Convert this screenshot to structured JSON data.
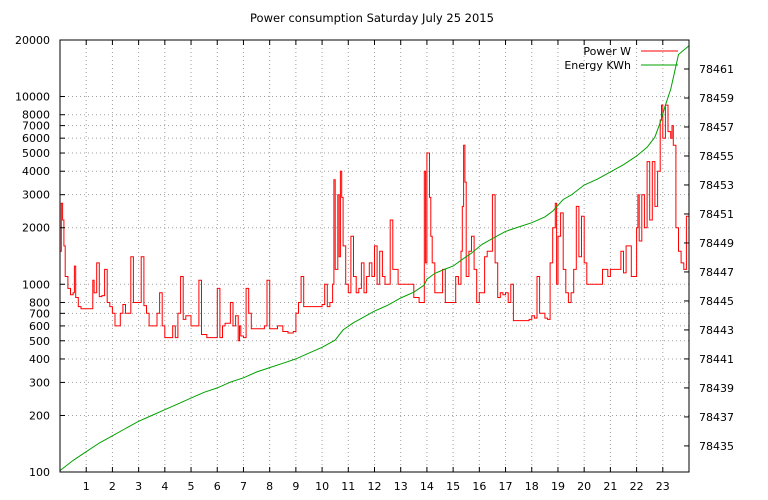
{
  "chart_data": {
    "type": "line",
    "title": "Power consumption Saturday July 25 2015",
    "xlabel": "",
    "ylabel": "",
    "y2label": "",
    "x_ticks": [
      "1",
      "2",
      "3",
      "4",
      "5",
      "6",
      "7",
      "8",
      "9",
      "10",
      "11",
      "12",
      "13",
      "14",
      "15",
      "16",
      "17",
      "18",
      "19",
      "20",
      "21",
      "22",
      "23"
    ],
    "xlim": [
      0,
      24
    ],
    "y_scale": "log",
    "ylim": [
      100,
      20000
    ],
    "y_ticks": [
      "100",
      "200",
      "300",
      "400",
      "500",
      "600",
      "700",
      "800",
      "1000",
      "2000",
      "3000",
      "4000",
      "5000",
      "6000",
      "7000",
      "8000",
      "10000",
      "20000"
    ],
    "y2lim": [
      78433.2,
      78463
    ],
    "y2_ticks": [
      "78435",
      "78437",
      "78439",
      "78441",
      "78443",
      "78445",
      "78447",
      "78449",
      "78451",
      "78453",
      "78455",
      "78457",
      "78459",
      "78461"
    ],
    "grid": true,
    "legend_position": "top-right",
    "colors": {
      "power": "#ff0000",
      "energy": "#00a000"
    },
    "series": [
      {
        "name": "Power W",
        "axis": "y1",
        "points": [
          [
            0.0,
            1500
          ],
          [
            0.05,
            2700
          ],
          [
            0.1,
            2200
          ],
          [
            0.15,
            1600
          ],
          [
            0.2,
            1100
          ],
          [
            0.3,
            950
          ],
          [
            0.4,
            880
          ],
          [
            0.5,
            900
          ],
          [
            0.55,
            1250
          ],
          [
            0.6,
            850
          ],
          [
            0.7,
            760
          ],
          [
            0.8,
            740
          ],
          [
            0.9,
            740
          ],
          [
            1.0,
            740
          ],
          [
            1.1,
            740
          ],
          [
            1.25,
            1050
          ],
          [
            1.3,
            900
          ],
          [
            1.4,
            1300
          ],
          [
            1.5,
            860
          ],
          [
            1.6,
            870
          ],
          [
            1.7,
            1200
          ],
          [
            1.8,
            800
          ],
          [
            1.9,
            760
          ],
          [
            2.0,
            700
          ],
          [
            2.1,
            600
          ],
          [
            2.2,
            600
          ],
          [
            2.3,
            700
          ],
          [
            2.4,
            780
          ],
          [
            2.5,
            700
          ],
          [
            2.6,
            700
          ],
          [
            2.7,
            1400
          ],
          [
            2.8,
            800
          ],
          [
            3.0,
            800
          ],
          [
            3.1,
            1400
          ],
          [
            3.2,
            770
          ],
          [
            3.3,
            700
          ],
          [
            3.4,
            600
          ],
          [
            3.6,
            600
          ],
          [
            3.7,
            700
          ],
          [
            3.8,
            900
          ],
          [
            3.9,
            600
          ],
          [
            4.0,
            520
          ],
          [
            4.2,
            520
          ],
          [
            4.3,
            600
          ],
          [
            4.4,
            520
          ],
          [
            4.5,
            700
          ],
          [
            4.6,
            1100
          ],
          [
            4.7,
            650
          ],
          [
            4.8,
            680
          ],
          [
            4.9,
            680
          ],
          [
            5.0,
            600
          ],
          [
            5.1,
            600
          ],
          [
            5.3,
            1050
          ],
          [
            5.4,
            540
          ],
          [
            5.6,
            520
          ],
          [
            5.9,
            520
          ],
          [
            6.0,
            950
          ],
          [
            6.1,
            520
          ],
          [
            6.2,
            600
          ],
          [
            6.3,
            620
          ],
          [
            6.5,
            800
          ],
          [
            6.6,
            600
          ],
          [
            6.7,
            680
          ],
          [
            6.8,
            500
          ],
          [
            6.85,
            600
          ],
          [
            6.9,
            530
          ],
          [
            7.0,
            520
          ],
          [
            7.1,
            950
          ],
          [
            7.2,
            700
          ],
          [
            7.3,
            580
          ],
          [
            7.6,
            580
          ],
          [
            7.8,
            600
          ],
          [
            7.9,
            1050
          ],
          [
            8.0,
            580
          ],
          [
            8.3,
            600
          ],
          [
            8.5,
            560
          ],
          [
            8.7,
            550
          ],
          [
            8.9,
            560
          ],
          [
            9.0,
            700
          ],
          [
            9.1,
            800
          ],
          [
            9.2,
            1100
          ],
          [
            9.3,
            760
          ],
          [
            9.6,
            760
          ],
          [
            9.8,
            760
          ],
          [
            10.0,
            780
          ],
          [
            10.1,
            1000
          ],
          [
            10.2,
            760
          ],
          [
            10.3,
            800
          ],
          [
            10.4,
            1000
          ],
          [
            10.45,
            3600
          ],
          [
            10.5,
            1200
          ],
          [
            10.6,
            3000
          ],
          [
            10.65,
            1400
          ],
          [
            10.7,
            4000
          ],
          [
            10.75,
            2900
          ],
          [
            10.8,
            1600
          ],
          [
            10.9,
            1000
          ],
          [
            11.0,
            900
          ],
          [
            11.1,
            1800
          ],
          [
            11.2,
            1100
          ],
          [
            11.3,
            900
          ],
          [
            11.4,
            950
          ],
          [
            11.5,
            1300
          ],
          [
            11.6,
            900
          ],
          [
            11.7,
            1100
          ],
          [
            11.8,
            1300
          ],
          [
            11.9,
            1100
          ],
          [
            12.0,
            1600
          ],
          [
            12.1,
            1000
          ],
          [
            12.2,
            1500
          ],
          [
            12.3,
            1100
          ],
          [
            12.4,
            1000
          ],
          [
            12.6,
            2200
          ],
          [
            12.7,
            1200
          ],
          [
            12.9,
            1000
          ],
          [
            13.0,
            1000
          ],
          [
            13.3,
            1000
          ],
          [
            13.5,
            850
          ],
          [
            13.7,
            800
          ],
          [
            13.85,
            800
          ],
          [
            13.9,
            4000
          ],
          [
            13.95,
            1300
          ],
          [
            14.0,
            5000
          ],
          [
            14.1,
            2900
          ],
          [
            14.15,
            1800
          ],
          [
            14.2,
            1300
          ],
          [
            14.3,
            900
          ],
          [
            14.5,
            900
          ],
          [
            14.6,
            1200
          ],
          [
            14.7,
            800
          ],
          [
            14.9,
            800
          ],
          [
            15.0,
            800
          ],
          [
            15.1,
            1100
          ],
          [
            15.2,
            1000
          ],
          [
            15.3,
            1500
          ],
          [
            15.35,
            2600
          ],
          [
            15.4,
            5500
          ],
          [
            15.45,
            3500
          ],
          [
            15.5,
            1100
          ],
          [
            15.6,
            1500
          ],
          [
            15.7,
            1800
          ],
          [
            15.8,
            1200
          ],
          [
            15.9,
            800
          ],
          [
            16.0,
            900
          ],
          [
            16.2,
            1400
          ],
          [
            16.3,
            1500
          ],
          [
            16.5,
            3000
          ],
          [
            16.6,
            1300
          ],
          [
            16.7,
            850
          ],
          [
            16.8,
            900
          ],
          [
            16.9,
            880
          ],
          [
            17.0,
            900
          ],
          [
            17.1,
            800
          ],
          [
            17.2,
            1000
          ],
          [
            17.3,
            640
          ],
          [
            17.5,
            640
          ],
          [
            17.7,
            640
          ],
          [
            17.9,
            650
          ],
          [
            18.0,
            680
          ],
          [
            18.1,
            660
          ],
          [
            18.2,
            1100
          ],
          [
            18.3,
            700
          ],
          [
            18.4,
            700
          ],
          [
            18.5,
            660
          ],
          [
            18.6,
            650
          ],
          [
            18.7,
            1300
          ],
          [
            18.8,
            2000
          ],
          [
            18.9,
            2700
          ],
          [
            18.95,
            1000
          ],
          [
            19.0,
            1800
          ],
          [
            19.1,
            2400
          ],
          [
            19.2,
            1200
          ],
          [
            19.3,
            900
          ],
          [
            19.4,
            800
          ],
          [
            19.5,
            900
          ],
          [
            19.6,
            1200
          ],
          [
            19.7,
            2600
          ],
          [
            19.8,
            1400
          ],
          [
            19.9,
            2300
          ],
          [
            20.0,
            1300
          ],
          [
            20.1,
            1000
          ],
          [
            20.3,
            1000
          ],
          [
            20.5,
            1000
          ],
          [
            20.7,
            1200
          ],
          [
            20.9,
            1100
          ],
          [
            21.0,
            1200
          ],
          [
            21.2,
            1200
          ],
          [
            21.4,
            1500
          ],
          [
            21.5,
            1150
          ],
          [
            21.6,
            1600
          ],
          [
            21.8,
            1100
          ],
          [
            22.0,
            2000
          ],
          [
            22.05,
            3000
          ],
          [
            22.1,
            1700
          ],
          [
            22.2,
            3000
          ],
          [
            22.3,
            2000
          ],
          [
            22.4,
            4500
          ],
          [
            22.5,
            2200
          ],
          [
            22.6,
            4500
          ],
          [
            22.7,
            2600
          ],
          [
            22.8,
            4000
          ],
          [
            22.9,
            7500
          ],
          [
            22.95,
            9000
          ],
          [
            23.0,
            6000
          ],
          [
            23.1,
            9000
          ],
          [
            23.2,
            6500
          ],
          [
            23.3,
            6000
          ],
          [
            23.35,
            7000
          ],
          [
            23.4,
            5500
          ],
          [
            23.5,
            2000
          ],
          [
            23.6,
            1500
          ],
          [
            23.7,
            1300
          ],
          [
            23.8,
            1200
          ],
          [
            23.9,
            2300
          ],
          [
            24.0,
            2300
          ]
        ]
      },
      {
        "name": "Energy KWh",
        "axis": "y2",
        "points": [
          [
            0.0,
            78433.3
          ],
          [
            0.5,
            78434.0
          ],
          [
            1.0,
            78434.6
          ],
          [
            1.5,
            78435.2
          ],
          [
            2.0,
            78435.7
          ],
          [
            2.5,
            78436.2
          ],
          [
            3.0,
            78436.7
          ],
          [
            3.5,
            78437.1
          ],
          [
            4.0,
            78437.5
          ],
          [
            4.5,
            78437.9
          ],
          [
            5.0,
            78438.3
          ],
          [
            5.5,
            78438.7
          ],
          [
            6.0,
            78439.0
          ],
          [
            6.5,
            78439.4
          ],
          [
            7.0,
            78439.7
          ],
          [
            7.5,
            78440.1
          ],
          [
            8.0,
            78440.4
          ],
          [
            8.5,
            78440.7
          ],
          [
            9.0,
            78441.0
          ],
          [
            9.5,
            78441.4
          ],
          [
            10.0,
            78441.8
          ],
          [
            10.5,
            78442.3
          ],
          [
            10.8,
            78443.0
          ],
          [
            11.2,
            78443.5
          ],
          [
            11.6,
            78443.9
          ],
          [
            12.0,
            78444.3
          ],
          [
            12.5,
            78444.7
          ],
          [
            13.0,
            78445.2
          ],
          [
            13.5,
            78445.6
          ],
          [
            13.9,
            78446.1
          ],
          [
            14.0,
            78446.5
          ],
          [
            14.3,
            78446.9
          ],
          [
            14.7,
            78447.2
          ],
          [
            15.0,
            78447.4
          ],
          [
            15.3,
            78447.8
          ],
          [
            15.7,
            78448.3
          ],
          [
            16.1,
            78448.9
          ],
          [
            16.5,
            78449.3
          ],
          [
            17.0,
            78449.8
          ],
          [
            17.5,
            78450.1
          ],
          [
            18.0,
            78450.4
          ],
          [
            18.5,
            78450.8
          ],
          [
            18.8,
            78451.2
          ],
          [
            19.0,
            78451.6
          ],
          [
            19.2,
            78452.0
          ],
          [
            19.5,
            78452.3
          ],
          [
            20.0,
            78453.0
          ],
          [
            20.5,
            78453.4
          ],
          [
            21.0,
            78453.9
          ],
          [
            21.5,
            78454.4
          ],
          [
            22.0,
            78455.0
          ],
          [
            22.4,
            78455.6
          ],
          [
            22.7,
            78456.3
          ],
          [
            22.9,
            78457.3
          ],
          [
            23.1,
            78458.5
          ],
          [
            23.3,
            78459.6
          ],
          [
            23.45,
            78460.8
          ],
          [
            23.6,
            78462.0
          ],
          [
            24.0,
            78462.6
          ]
        ]
      }
    ]
  }
}
